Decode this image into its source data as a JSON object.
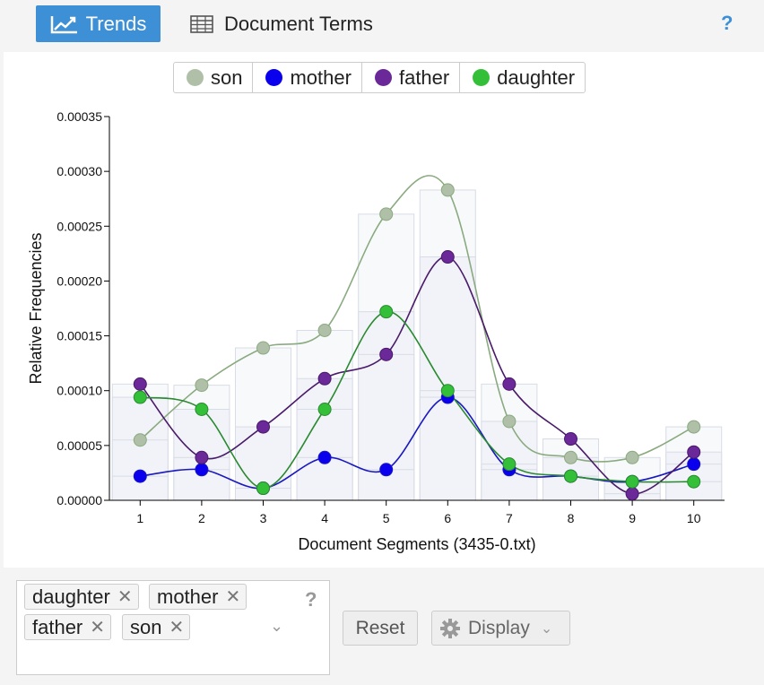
{
  "toolbar": {
    "tabs": [
      {
        "label": "Trends",
        "icon": "line-chart-icon",
        "active": true
      },
      {
        "label": "Document Terms",
        "icon": "table-icon",
        "active": false
      }
    ],
    "help_label": "?"
  },
  "legend": [
    {
      "label": "son",
      "color": "#b0c0a8"
    },
    {
      "label": "mother",
      "color": "#0a00ee"
    },
    {
      "label": "father",
      "color": "#6a2898"
    },
    {
      "label": "daughter",
      "color": "#33c038"
    }
  ],
  "chart_data": {
    "type": "line",
    "xlabel": "Document Segments (3435-0.txt)",
    "ylabel": "Relative Frequencies",
    "x": [
      1,
      2,
      3,
      4,
      5,
      6,
      7,
      8,
      9,
      10
    ],
    "ylim": [
      0,
      0.00035
    ],
    "yticks": [
      "0.00000",
      "0.00005",
      "0.00010",
      "0.00015",
      "0.00020",
      "0.00025",
      "0.00030",
      "0.00035"
    ],
    "series": [
      {
        "name": "son",
        "color": "#b0c0a8",
        "line": "#8aaa80",
        "values": [
          5.5e-05,
          0.000105,
          0.000139,
          0.000155,
          0.000261,
          0.000283,
          7.2e-05,
          3.9e-05,
          3.9e-05,
          6.7e-05
        ]
      },
      {
        "name": "mother",
        "color": "#0a00ee",
        "line": "#1a18c0",
        "values": [
          2.2e-05,
          2.8e-05,
          1.1e-05,
          3.9e-05,
          2.8e-05,
          9.4e-05,
          2.8e-05,
          2.2e-05,
          1.7e-05,
          3.3e-05
        ]
      },
      {
        "name": "father",
        "color": "#6a2898",
        "line": "#4a1a6a",
        "values": [
          0.000106,
          3.9e-05,
          6.7e-05,
          0.000111,
          0.000133,
          0.000222,
          0.000106,
          5.6e-05,
          6e-06,
          4.4e-05
        ]
      },
      {
        "name": "daughter",
        "color": "#33c038",
        "line": "#2a8a30",
        "values": [
          9.4e-05,
          8.3e-05,
          1.1e-05,
          8.3e-05,
          0.000172,
          0.0001,
          3.3e-05,
          2.2e-05,
          1.7e-05,
          1.7e-05
        ]
      }
    ]
  },
  "terms": {
    "chips": [
      "daughter",
      "mother",
      "father",
      "son"
    ],
    "help_label": "?"
  },
  "buttons": {
    "reset_label": "Reset",
    "display_label": "Display"
  }
}
